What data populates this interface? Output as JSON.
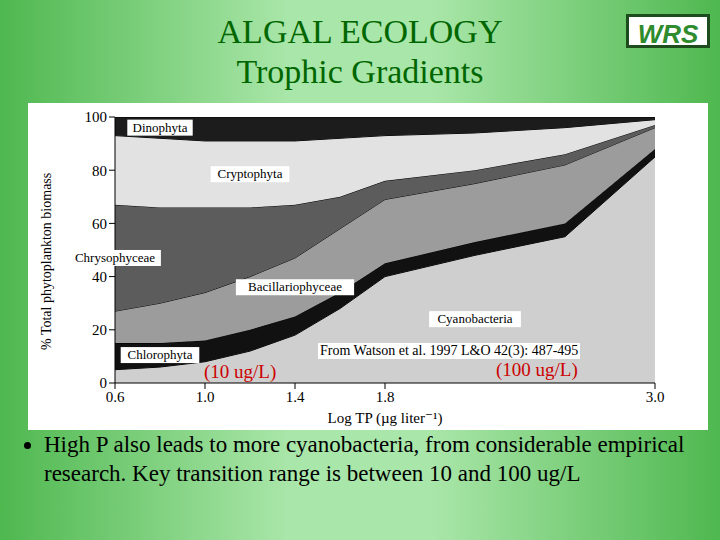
{
  "slide": {
    "title": [
      "ALGAL ECOLOGY",
      "Trophic Gradients"
    ],
    "logo": "WRS",
    "bullet": "High P also leads to more cyanobacteria, from considerable empirical research.  Key transition range is between 10 and 100 ug/L"
  },
  "chart_data": {
    "type": "area",
    "stacked": true,
    "grid": false,
    "x_label": "Log TP (µg liter⁻¹)",
    "y_label": "% Total phytoplankton biomass",
    "annotations": [
      "From Watson et al. 1997 L&O 42(3): 487-495",
      "(10 ug/L)",
      "(100 ug/L)"
    ],
    "xlim": [
      0.6,
      3.0
    ],
    "xticks": [
      0.6,
      {
        "value": 1,
        "label": "1.0"
      },
      1.4,
      1.8,
      {
        "value": 3,
        "label": "3.0"
      }
    ],
    "ylim": [
      0,
      100
    ],
    "yticks": [
      0,
      20,
      40,
      60,
      80,
      100
    ],
    "x": [
      0.6,
      0.8,
      1.0,
      1.2,
      1.4,
      1.6,
      1.8,
      2.2,
      2.6,
      3.0
    ],
    "series": [
      {
        "name": "Cyanobacteria",
        "color": "#cfcfcf",
        "values": [
          5,
          6,
          8,
          12,
          18,
          28,
          40,
          48,
          55,
          85
        ]
      },
      {
        "name": "Chlorophyta",
        "color": "#111111",
        "values": [
          10,
          9,
          8,
          8,
          7,
          6,
          5,
          5,
          5,
          3
        ]
      },
      {
        "name": "Bacillariophyceae",
        "color": "#9c9c9c",
        "values": [
          12,
          15,
          18,
          20,
          22,
          24,
          24,
          22,
          22,
          8
        ]
      },
      {
        "name": "Chrysophyceae",
        "color": "#5c5c5c",
        "values": [
          40,
          36,
          32,
          26,
          20,
          12,
          7,
          5,
          4,
          1
        ]
      },
      {
        "name": "Cryptophyta",
        "color": "#e2e2e2",
        "values": [
          26,
          26,
          25,
          25,
          24,
          22,
          17,
          14,
          10,
          2
        ]
      },
      {
        "name": "Dinophyta",
        "color": "#1c1c1c",
        "values": [
          7,
          8,
          9,
          9,
          9,
          8,
          7,
          6,
          4,
          1
        ]
      }
    ]
  }
}
